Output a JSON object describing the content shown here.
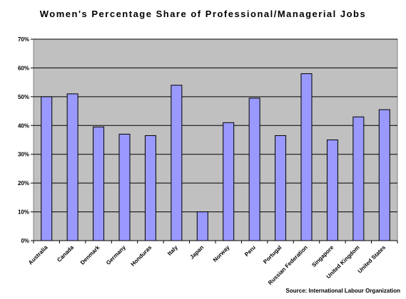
{
  "chart_data": {
    "type": "bar",
    "title": "Women's Percentage Share of Professional/Managerial Jobs",
    "source": "Source: International Labour Organization",
    "categories": [
      "Australia",
      "Canada",
      "Denmark",
      "Germany",
      "Honduras",
      "Italy",
      "Japan",
      "Norway",
      "Peru",
      "Portugal",
      "Russian Federation",
      "Singapore",
      "United Kingdom",
      "United States"
    ],
    "values": [
      50,
      51,
      39.5,
      37,
      36.5,
      54,
      10,
      41,
      49.5,
      36.5,
      58,
      35,
      43,
      45.5
    ],
    "ylim": [
      0,
      70
    ],
    "yticks": [
      "0%",
      "10%",
      "20%",
      "30%",
      "40%",
      "50%",
      "60%",
      "70%"
    ],
    "ytick_values": [
      0,
      10,
      20,
      30,
      40,
      50,
      60,
      70
    ],
    "xlabel": "",
    "ylabel": "",
    "grid": true,
    "legend": "none",
    "colors": {
      "plot_background": "#c0c0c0",
      "bar_fill": "#9999ff",
      "bar_stroke": "#000000"
    }
  }
}
